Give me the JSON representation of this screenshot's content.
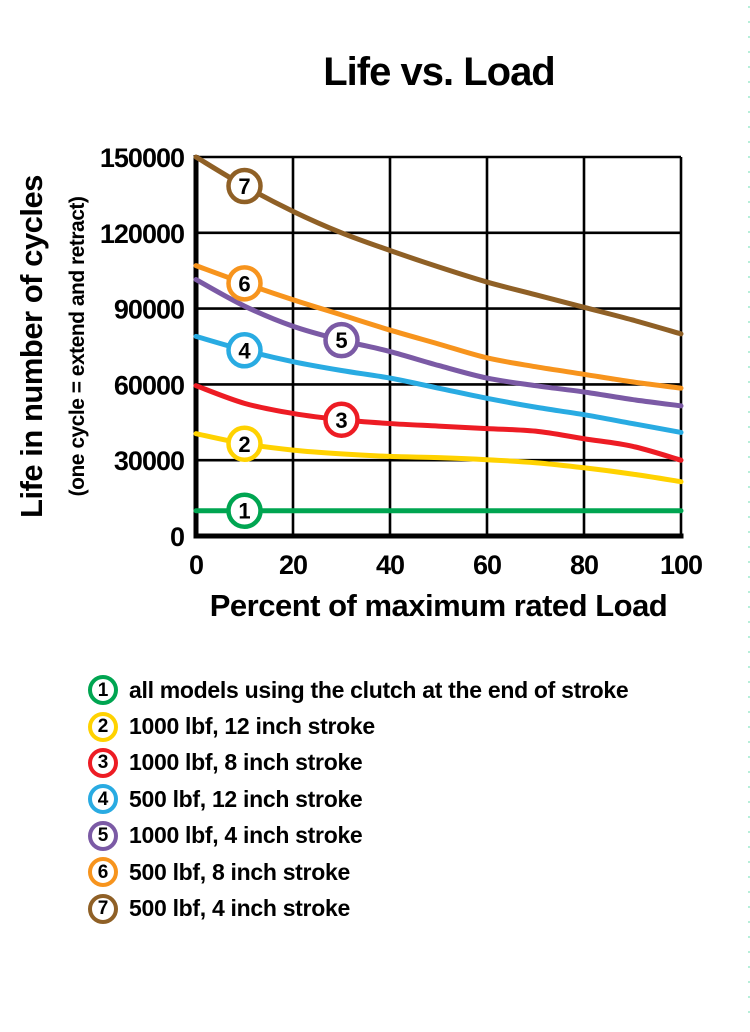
{
  "chart_data": {
    "type": "line",
    "title": "Life vs. Load",
    "xlabel": "Percent of maximum rated Load",
    "ylabel": "Life in number of cycles",
    "ylabel_sub": "(one cycle = extend and retract)",
    "xlim": [
      0,
      100
    ],
    "ylim": [
      0,
      150000
    ],
    "xticks": [
      0,
      20,
      40,
      60,
      80,
      100
    ],
    "yticks": [
      0,
      30000,
      60000,
      90000,
      120000,
      150000
    ],
    "grid": true,
    "legend_position": "below",
    "x": [
      0,
      10,
      20,
      30,
      40,
      50,
      60,
      70,
      80,
      90,
      100
    ],
    "series": [
      {
        "number": "1",
        "name": "all models using the clutch at the end of stroke",
        "color": "#00A551",
        "values": [
          10000,
          10000,
          10000,
          10000,
          10000,
          10000,
          10000,
          10000,
          10000,
          10000,
          10000
        ],
        "badge_at": {
          "x": 10,
          "y": 10000
        }
      },
      {
        "number": "2",
        "name": "1000 lbf, 12 inch stroke",
        "color": "#FFD200",
        "values": [
          40500,
          36500,
          34000,
          32500,
          31500,
          31000,
          30200,
          29000,
          27000,
          24500,
          21500
        ],
        "badge_at": {
          "x": 10,
          "y": 36500
        }
      },
      {
        "number": "3",
        "name": "1000 lbf, 8 inch stroke",
        "color": "#ED1C24",
        "values": [
          59500,
          52500,
          48500,
          46000,
          44500,
          43500,
          42500,
          41500,
          38500,
          35500,
          30000
        ],
        "badge_at": {
          "x": 30,
          "y": 46000
        }
      },
      {
        "number": "4",
        "name": "500 lbf, 12 inch stroke",
        "color": "#29ABE2",
        "values": [
          79000,
          73500,
          69000,
          65500,
          62500,
          58500,
          54500,
          51000,
          48000,
          44500,
          41000
        ],
        "badge_at": {
          "x": 10,
          "y": 73500
        }
      },
      {
        "number": "5",
        "name": "1000 lbf, 4 inch stroke",
        "color": "#7B5AA5",
        "values": [
          101500,
          91000,
          83000,
          77500,
          73000,
          67500,
          62500,
          59500,
          57000,
          54000,
          51500
        ],
        "badge_at": {
          "x": 30,
          "y": 77500
        }
      },
      {
        "number": "6",
        "name": "500 lbf, 8 inch stroke",
        "color": "#F7941D",
        "values": [
          107000,
          100000,
          93500,
          87500,
          81500,
          76000,
          70500,
          67000,
          64000,
          61000,
          58500
        ],
        "badge_at": {
          "x": 10,
          "y": 100000
        }
      },
      {
        "number": "7",
        "name": "500 lbf, 4 inch stroke",
        "color": "#8F6026",
        "values": [
          150000,
          138500,
          128500,
          120000,
          113000,
          106500,
          100500,
          95500,
          90500,
          85500,
          80000
        ],
        "badge_at": {
          "x": 10,
          "y": 138500
        }
      }
    ]
  }
}
